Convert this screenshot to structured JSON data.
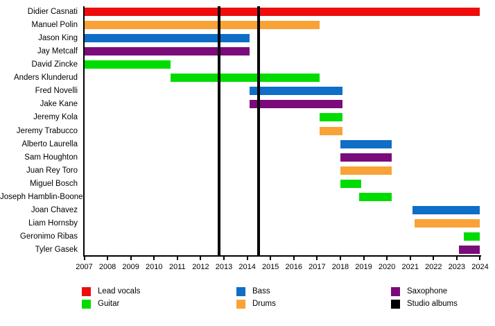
{
  "chart_data": {
    "type": "bar",
    "variant": "horizontal-gantt-timeline",
    "title": "",
    "xlabel": "",
    "ylabel": "",
    "grid": false,
    "x_axis": {
      "min": 2007,
      "max": 2024,
      "tick_years": [
        2007,
        2008,
        2009,
        2010,
        2011,
        2012,
        2013,
        2014,
        2015,
        2016,
        2017,
        2018,
        2019,
        2020,
        2021,
        2022,
        2023,
        2024
      ]
    },
    "categories": [
      "Didier Casnati",
      "Manuel Polin",
      "Jason King",
      "Jay Metcalf",
      "David Zincke",
      "Anders Klunderud",
      "Fred Novelli",
      "Jake Kane",
      "Jeremy Kola",
      "Jeremy Trabucco",
      "Alberto Laurella",
      "Sam Houghton",
      "Juan Rey Toro",
      "Miguel Bosch",
      "Joseph Hamblin-Boone",
      "Joan Chavez",
      "Liam Hornsby",
      "Geronimo Ribas",
      "Tyler Gasek"
    ],
    "members": [
      {
        "name": "Didier Casnati",
        "role": "Lead vocals",
        "color_key": "lead_vocals",
        "start": 2007.0,
        "end": 2024.0
      },
      {
        "name": "Manuel Polin",
        "role": "Drums",
        "color_key": "drums",
        "start": 2007.0,
        "end": 2017.1
      },
      {
        "name": "Jason King",
        "role": "Bass",
        "color_key": "bass",
        "start": 2007.0,
        "end": 2014.1
      },
      {
        "name": "Jay Metcalf",
        "role": "Saxophone",
        "color_key": "saxophone",
        "start": 2007.0,
        "end": 2014.1
      },
      {
        "name": "David Zincke",
        "role": "Guitar",
        "color_key": "guitar",
        "start": 2007.0,
        "end": 2010.7
      },
      {
        "name": "Anders Klunderud",
        "role": "Guitar",
        "color_key": "guitar",
        "start": 2010.7,
        "end": 2017.1
      },
      {
        "name": "Fred Novelli",
        "role": "Bass",
        "color_key": "bass",
        "start": 2014.1,
        "end": 2018.1
      },
      {
        "name": "Jake Kane",
        "role": "Saxophone",
        "color_key": "saxophone",
        "start": 2014.1,
        "end": 2018.1
      },
      {
        "name": "Jeremy Kola",
        "role": "Guitar",
        "color_key": "guitar",
        "start": 2017.1,
        "end": 2018.1
      },
      {
        "name": "Jeremy Trabucco",
        "role": "Drums",
        "color_key": "drums",
        "start": 2017.1,
        "end": 2018.1
      },
      {
        "name": "Alberto Laurella",
        "role": "Bass",
        "color_key": "bass",
        "start": 2018.0,
        "end": 2020.2
      },
      {
        "name": "Sam Houghton",
        "role": "Saxophone",
        "color_key": "saxophone",
        "start": 2018.0,
        "end": 2020.2
      },
      {
        "name": "Juan Rey Toro",
        "role": "Drums",
        "color_key": "drums",
        "start": 2018.0,
        "end": 2020.2
      },
      {
        "name": "Miguel Bosch",
        "role": "Guitar",
        "color_key": "guitar",
        "start": 2018.0,
        "end": 2018.9
      },
      {
        "name": "Joseph Hamblin-Boone",
        "role": "Guitar",
        "color_key": "guitar",
        "start": 2018.8,
        "end": 2020.2
      },
      {
        "name": "Joan Chavez",
        "role": "Bass",
        "color_key": "bass",
        "start": 2021.1,
        "end": 2024.0
      },
      {
        "name": "Liam Hornsby",
        "role": "Drums",
        "color_key": "drums",
        "start": 2021.2,
        "end": 2024.0
      },
      {
        "name": "Geronimo Ribas",
        "role": "Guitar",
        "color_key": "guitar",
        "start": 2023.3,
        "end": 2024.0
      },
      {
        "name": "Tyler Gasek",
        "role": "Saxophone",
        "color_key": "saxophone",
        "start": 2023.1,
        "end": 2024.0
      }
    ],
    "album_lines": {
      "label": "Studio albums",
      "years": [
        2012.8,
        2014.5
      ]
    },
    "legend": {
      "position": "bottom",
      "entries": [
        {
          "label": "Lead vocals",
          "color_key": "lead_vocals"
        },
        {
          "label": "Guitar",
          "color_key": "guitar"
        },
        {
          "label": "Bass",
          "color_key": "bass"
        },
        {
          "label": "Drums",
          "color_key": "drums"
        },
        {
          "label": "Saxophone",
          "color_key": "saxophone"
        },
        {
          "label": "Studio albums",
          "color_key": "albums"
        }
      ]
    },
    "colors": {
      "lead_vocals": "#ee0d0d",
      "guitar": "#00dc00",
      "bass": "#0e6ec8",
      "drums": "#f9a238",
      "saxophone": "#7b0a7b",
      "albums": "#000000",
      "axis": "#000000",
      "background": "#ffffff"
    }
  }
}
